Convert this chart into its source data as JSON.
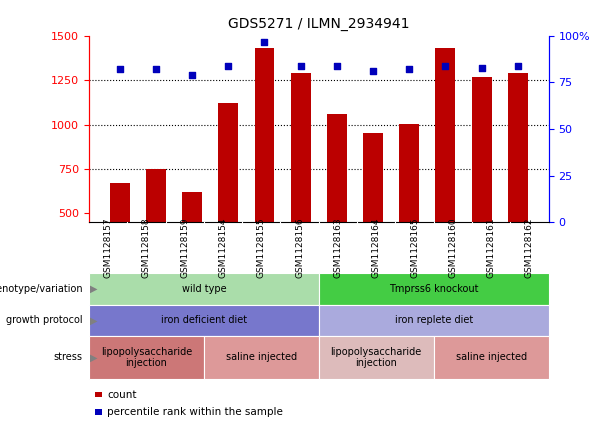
{
  "title": "GDS5271 / ILMN_2934941",
  "samples": [
    "GSM1128157",
    "GSM1128158",
    "GSM1128159",
    "GSM1128154",
    "GSM1128155",
    "GSM1128156",
    "GSM1128163",
    "GSM1128164",
    "GSM1128165",
    "GSM1128160",
    "GSM1128161",
    "GSM1128162"
  ],
  "counts": [
    670,
    750,
    620,
    1120,
    1430,
    1290,
    1060,
    950,
    1005,
    1430,
    1270,
    1290
  ],
  "percentiles": [
    82,
    82,
    79,
    84,
    97,
    84,
    84,
    81,
    82,
    84,
    83,
    84
  ],
  "ylim_left": [
    450,
    1500
  ],
  "ylim_right": [
    0,
    100
  ],
  "yticks_left": [
    500,
    750,
    1000,
    1250,
    1500
  ],
  "yticks_right": [
    0,
    25,
    50,
    75,
    100
  ],
  "bar_color": "#bb0000",
  "dot_color": "#0000bb",
  "annotations": [
    {
      "label": "genotype/variation",
      "groups": [
        {
          "text": "wild type",
          "start": 0,
          "end": 6,
          "color": "#aaddaa"
        },
        {
          "text": "Tmprss6 knockout",
          "start": 6,
          "end": 12,
          "color": "#44cc44"
        }
      ]
    },
    {
      "label": "growth protocol",
      "groups": [
        {
          "text": "iron deficient diet",
          "start": 0,
          "end": 6,
          "color": "#7777cc"
        },
        {
          "text": "iron replete diet",
          "start": 6,
          "end": 12,
          "color": "#aaaadd"
        }
      ]
    },
    {
      "label": "stress",
      "groups": [
        {
          "text": "lipopolysaccharide\ninjection",
          "start": 0,
          "end": 3,
          "color": "#cc7777"
        },
        {
          "text": "saline injected",
          "start": 3,
          "end": 6,
          "color": "#dd9999"
        },
        {
          "text": "lipopolysaccharide\ninjection",
          "start": 6,
          "end": 9,
          "color": "#ddbbbb"
        },
        {
          "text": "saline injected",
          "start": 9,
          "end": 12,
          "color": "#dd9999"
        }
      ]
    }
  ],
  "legend_items": [
    {
      "color": "#bb0000",
      "label": "count"
    },
    {
      "color": "#0000bb",
      "label": "percentile rank within the sample"
    }
  ]
}
